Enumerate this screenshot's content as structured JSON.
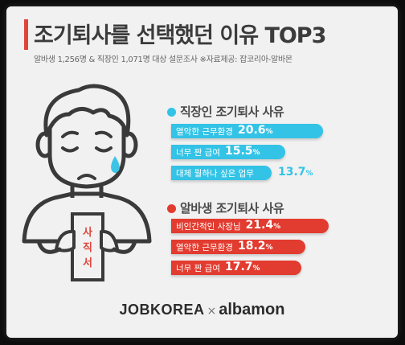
{
  "title": "조기퇴사를 선택했던 이유 TOP3",
  "subtitle": "알바생 1,256명 & 직장인 1,071명 대상 설문조사 ※자료제공: 잡코리아-알바몬",
  "document_label": "사직서",
  "footer": {
    "brand1": "JOBKOREA",
    "separator": "×",
    "brand2": "albamon"
  },
  "colors": {
    "accent": "#e0453b",
    "employee": "#33c3e6",
    "parttime": "#e23b2f"
  },
  "chart_data": [
    {
      "type": "bar",
      "title": "직장인 조기퇴사 사유",
      "color": "#33c3e6",
      "categories": [
        "열악한 근무환경",
        "너무 짠 급여",
        "대체 뭘하나 싶은 업무"
      ],
      "values": [
        20.6,
        15.5,
        13.7
      ],
      "unit": "%"
    },
    {
      "type": "bar",
      "title": "알바생 조기퇴사 사유",
      "color": "#e23b2f",
      "categories": [
        "비인간적인 사장님",
        "열악한 근무환경",
        "너무 짠 급여"
      ],
      "values": [
        21.4,
        18.2,
        17.7
      ],
      "unit": "%"
    }
  ]
}
